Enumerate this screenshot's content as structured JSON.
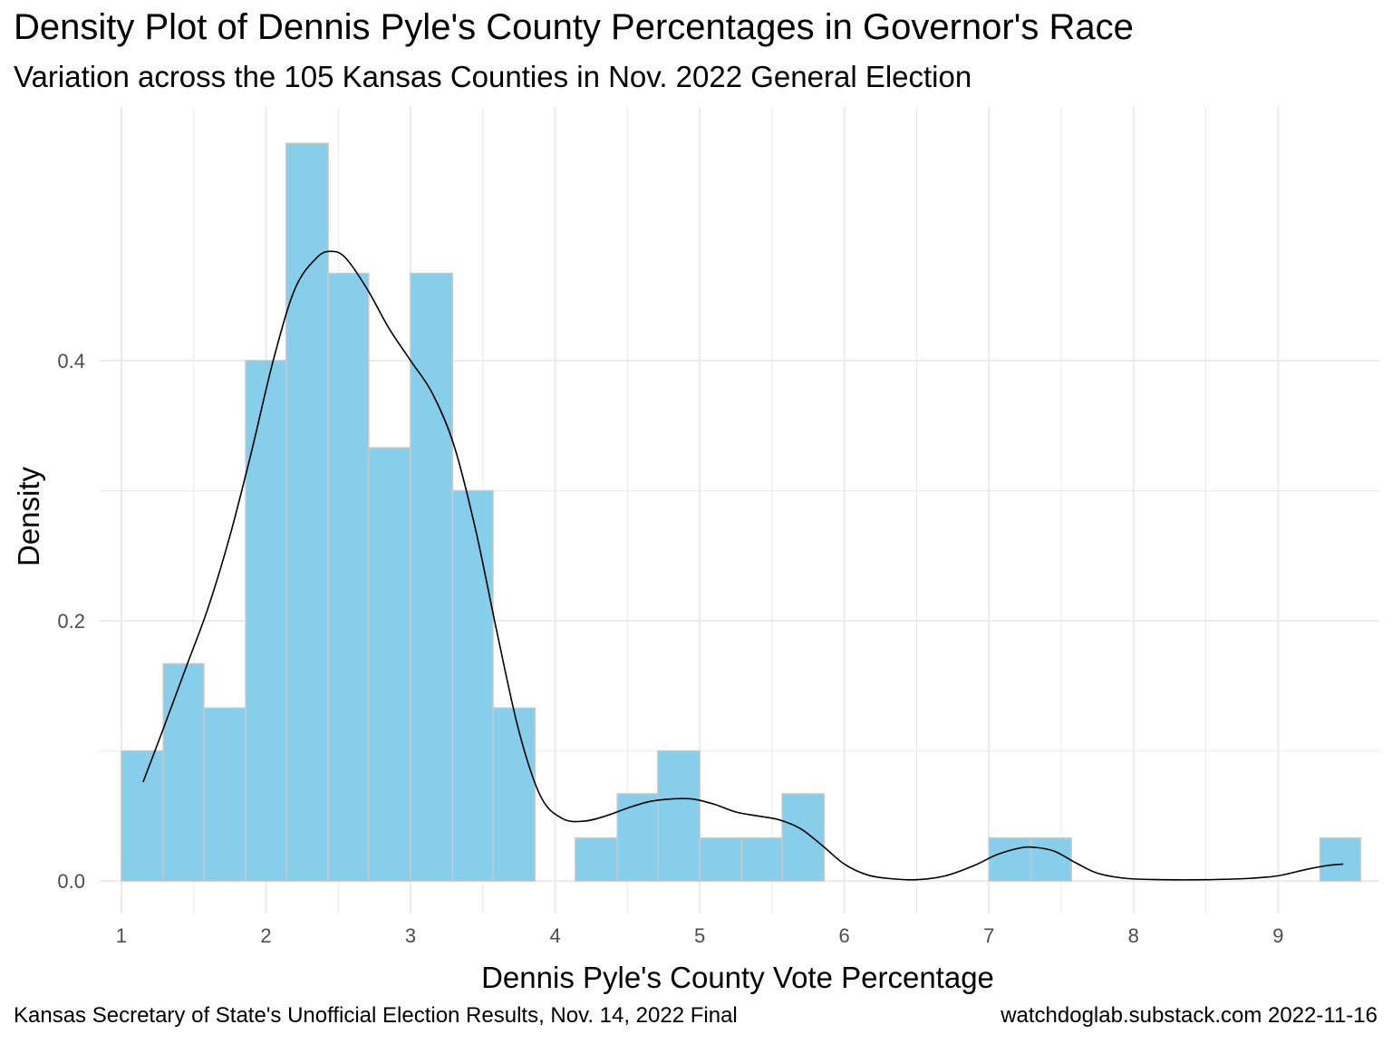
{
  "title": "Density Plot of Dennis Pyle's County Percentages in Governor's Race",
  "subtitle": "Variation across the 105 Kansas Counties in Nov. 2022 General Election",
  "caption_left": "Kansas Secretary of State's Unofficial Election Results, Nov. 14, 2022 Final",
  "caption_right": "watchdoglab.substack.com 2022-11-16",
  "colors": {
    "bar_fill": "#87ceeb",
    "bar_outline": "#c8c8c8",
    "grid": "#ebebeb",
    "density_line": "#000000"
  },
  "chart_data": {
    "type": "bar",
    "subtype": "histogram-with-density",
    "xlabel": "Dennis Pyle's County Vote Percentage",
    "ylabel": "Density",
    "xlim": [
      0.85,
      9.7
    ],
    "ylim": [
      -0.025,
      0.595
    ],
    "x_ticks": [
      1,
      2,
      3,
      4,
      5,
      6,
      7,
      8,
      9
    ],
    "y_ticks": [
      0.0,
      0.2,
      0.4
    ],
    "y_tick_labels": [
      "0.0",
      "0.2",
      "0.4"
    ],
    "grid": true,
    "bin_width": 0.2857,
    "bins": [
      {
        "x0": 1.0,
        "x1": 1.29,
        "density": 0.1
      },
      {
        "x0": 1.29,
        "x1": 1.57,
        "density": 0.167
      },
      {
        "x0": 1.57,
        "x1": 1.86,
        "density": 0.133
      },
      {
        "x0": 1.86,
        "x1": 2.14,
        "density": 0.4
      },
      {
        "x0": 2.14,
        "x1": 2.43,
        "density": 0.567
      },
      {
        "x0": 2.43,
        "x1": 2.71,
        "density": 0.467
      },
      {
        "x0": 2.71,
        "x1": 3.0,
        "density": 0.333
      },
      {
        "x0": 3.0,
        "x1": 3.29,
        "density": 0.467
      },
      {
        "x0": 3.29,
        "x1": 3.57,
        "density": 0.3
      },
      {
        "x0": 3.57,
        "x1": 3.86,
        "density": 0.133
      },
      {
        "x0": 3.86,
        "x1": 4.14,
        "density": 0.0
      },
      {
        "x0": 4.14,
        "x1": 4.43,
        "density": 0.033
      },
      {
        "x0": 4.43,
        "x1": 4.71,
        "density": 0.067
      },
      {
        "x0": 4.71,
        "x1": 5.0,
        "density": 0.1
      },
      {
        "x0": 5.0,
        "x1": 5.29,
        "density": 0.033
      },
      {
        "x0": 5.29,
        "x1": 5.57,
        "density": 0.033
      },
      {
        "x0": 5.57,
        "x1": 5.86,
        "density": 0.067
      },
      {
        "x0": 5.86,
        "x1": 6.14,
        "density": 0.0
      },
      {
        "x0": 6.14,
        "x1": 6.43,
        "density": 0.0
      },
      {
        "x0": 6.43,
        "x1": 6.71,
        "density": 0.0
      },
      {
        "x0": 6.71,
        "x1": 7.0,
        "density": 0.0
      },
      {
        "x0": 7.0,
        "x1": 7.29,
        "density": 0.033
      },
      {
        "x0": 7.29,
        "x1": 7.57,
        "density": 0.033
      },
      {
        "x0": 7.57,
        "x1": 7.86,
        "density": 0.0
      },
      {
        "x0": 7.86,
        "x1": 8.14,
        "density": 0.0
      },
      {
        "x0": 8.14,
        "x1": 8.43,
        "density": 0.0
      },
      {
        "x0": 8.43,
        "x1": 8.71,
        "density": 0.0
      },
      {
        "x0": 8.71,
        "x1": 9.0,
        "density": 0.0
      },
      {
        "x0": 9.0,
        "x1": 9.29,
        "density": 0.0
      },
      {
        "x0": 9.29,
        "x1": 9.57,
        "density": 0.033
      }
    ],
    "density_curve": [
      {
        "x": 1.15,
        "y": 0.076
      },
      {
        "x": 1.3,
        "y": 0.12
      },
      {
        "x": 1.45,
        "y": 0.165
      },
      {
        "x": 1.6,
        "y": 0.21
      },
      {
        "x": 1.75,
        "y": 0.265
      },
      {
        "x": 1.9,
        "y": 0.33
      },
      {
        "x": 2.05,
        "y": 0.4
      },
      {
        "x": 2.2,
        "y": 0.455
      },
      {
        "x": 2.35,
        "y": 0.479
      },
      {
        "x": 2.45,
        "y": 0.484
      },
      {
        "x": 2.55,
        "y": 0.479
      },
      {
        "x": 2.7,
        "y": 0.455
      },
      {
        "x": 2.85,
        "y": 0.425
      },
      {
        "x": 3.0,
        "y": 0.4
      },
      {
        "x": 3.15,
        "y": 0.375
      },
      {
        "x": 3.3,
        "y": 0.335
      },
      {
        "x": 3.45,
        "y": 0.27
      },
      {
        "x": 3.6,
        "y": 0.19
      },
      {
        "x": 3.75,
        "y": 0.115
      },
      {
        "x": 3.9,
        "y": 0.065
      },
      {
        "x": 4.05,
        "y": 0.048
      },
      {
        "x": 4.2,
        "y": 0.046
      },
      {
        "x": 4.35,
        "y": 0.05
      },
      {
        "x": 4.5,
        "y": 0.056
      },
      {
        "x": 4.65,
        "y": 0.061
      },
      {
        "x": 4.8,
        "y": 0.063
      },
      {
        "x": 4.95,
        "y": 0.063
      },
      {
        "x": 5.1,
        "y": 0.059
      },
      {
        "x": 5.25,
        "y": 0.053
      },
      {
        "x": 5.4,
        "y": 0.05
      },
      {
        "x": 5.55,
        "y": 0.047
      },
      {
        "x": 5.7,
        "y": 0.04
      },
      {
        "x": 5.85,
        "y": 0.027
      },
      {
        "x": 6.0,
        "y": 0.013
      },
      {
        "x": 6.15,
        "y": 0.005
      },
      {
        "x": 6.3,
        "y": 0.002
      },
      {
        "x": 6.5,
        "y": 0.001
      },
      {
        "x": 6.7,
        "y": 0.004
      },
      {
        "x": 6.9,
        "y": 0.012
      },
      {
        "x": 7.05,
        "y": 0.02
      },
      {
        "x": 7.2,
        "y": 0.025
      },
      {
        "x": 7.3,
        "y": 0.026
      },
      {
        "x": 7.45,
        "y": 0.023
      },
      {
        "x": 7.6,
        "y": 0.014
      },
      {
        "x": 7.75,
        "y": 0.006
      },
      {
        "x": 7.95,
        "y": 0.002
      },
      {
        "x": 8.2,
        "y": 0.001
      },
      {
        "x": 8.5,
        "y": 0.001
      },
      {
        "x": 8.8,
        "y": 0.002
      },
      {
        "x": 9.0,
        "y": 0.004
      },
      {
        "x": 9.2,
        "y": 0.009
      },
      {
        "x": 9.35,
        "y": 0.012
      },
      {
        "x": 9.45,
        "y": 0.013
      }
    ]
  }
}
